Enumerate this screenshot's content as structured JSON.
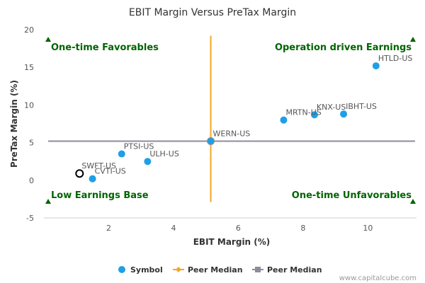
{
  "chart_data": {
    "type": "scatter",
    "title": "EBIT Margin Versus PreTax Margin",
    "xlabel": "EBIT Margin (%)",
    "ylabel": "PreTax Margin (%)",
    "xlim": [
      0,
      11.5
    ],
    "ylim": [
      -5,
      20
    ],
    "xticks": [
      "2",
      "4",
      "6",
      "8",
      "10"
    ],
    "xtick_values": [
      2,
      4,
      6,
      8,
      10
    ],
    "yticks": [
      "-5",
      "0",
      "5",
      "10",
      "15",
      "20"
    ],
    "ytick_values": [
      -5,
      0,
      5,
      10,
      15,
      20
    ],
    "grid": false,
    "colors": {
      "symbol": "#1f9fe6",
      "peer_median_x": "#f5a623",
      "peer_median_y": "#8c8c99",
      "quadrant_text": "#006400",
      "highlight_stroke": "#000000"
    },
    "points": [
      {
        "label": "HTLD-US",
        "x": 10.25,
        "y": 15.2
      },
      {
        "label": "IBHT-US",
        "x": 9.25,
        "y": 8.8
      },
      {
        "label": "KNX-US",
        "x": 8.35,
        "y": 8.7
      },
      {
        "label": "MRTN-US",
        "x": 7.4,
        "y": 8.0
      },
      {
        "label": "WERN-US",
        "x": 5.15,
        "y": 5.2
      },
      {
        "label": "PTSI-US",
        "x": 2.4,
        "y": 3.5
      },
      {
        "label": "ULH-US",
        "x": 3.2,
        "y": 2.5
      },
      {
        "label": "SWFT-US",
        "x": 1.1,
        "y": 0.9,
        "highlight": true
      },
      {
        "label": "CVTI-US",
        "x": 1.5,
        "y": 0.2
      }
    ],
    "peer_median": {
      "x": 5.15,
      "y": 5.2
    },
    "quadrants": {
      "top_left": "One-time Favorables",
      "top_right": "Operation driven Earnings",
      "bottom_left": "Low Earnings Base",
      "bottom_right": "One-time Unfavorables"
    },
    "legend": {
      "placement": "bottom",
      "items": [
        {
          "label": "Symbol",
          "marker": "circle"
        },
        {
          "label": "Peer Median",
          "marker": "diamond-line"
        },
        {
          "label": "Peer Median",
          "marker": "square-line"
        }
      ]
    },
    "credit": "www.capitalcube.com"
  }
}
